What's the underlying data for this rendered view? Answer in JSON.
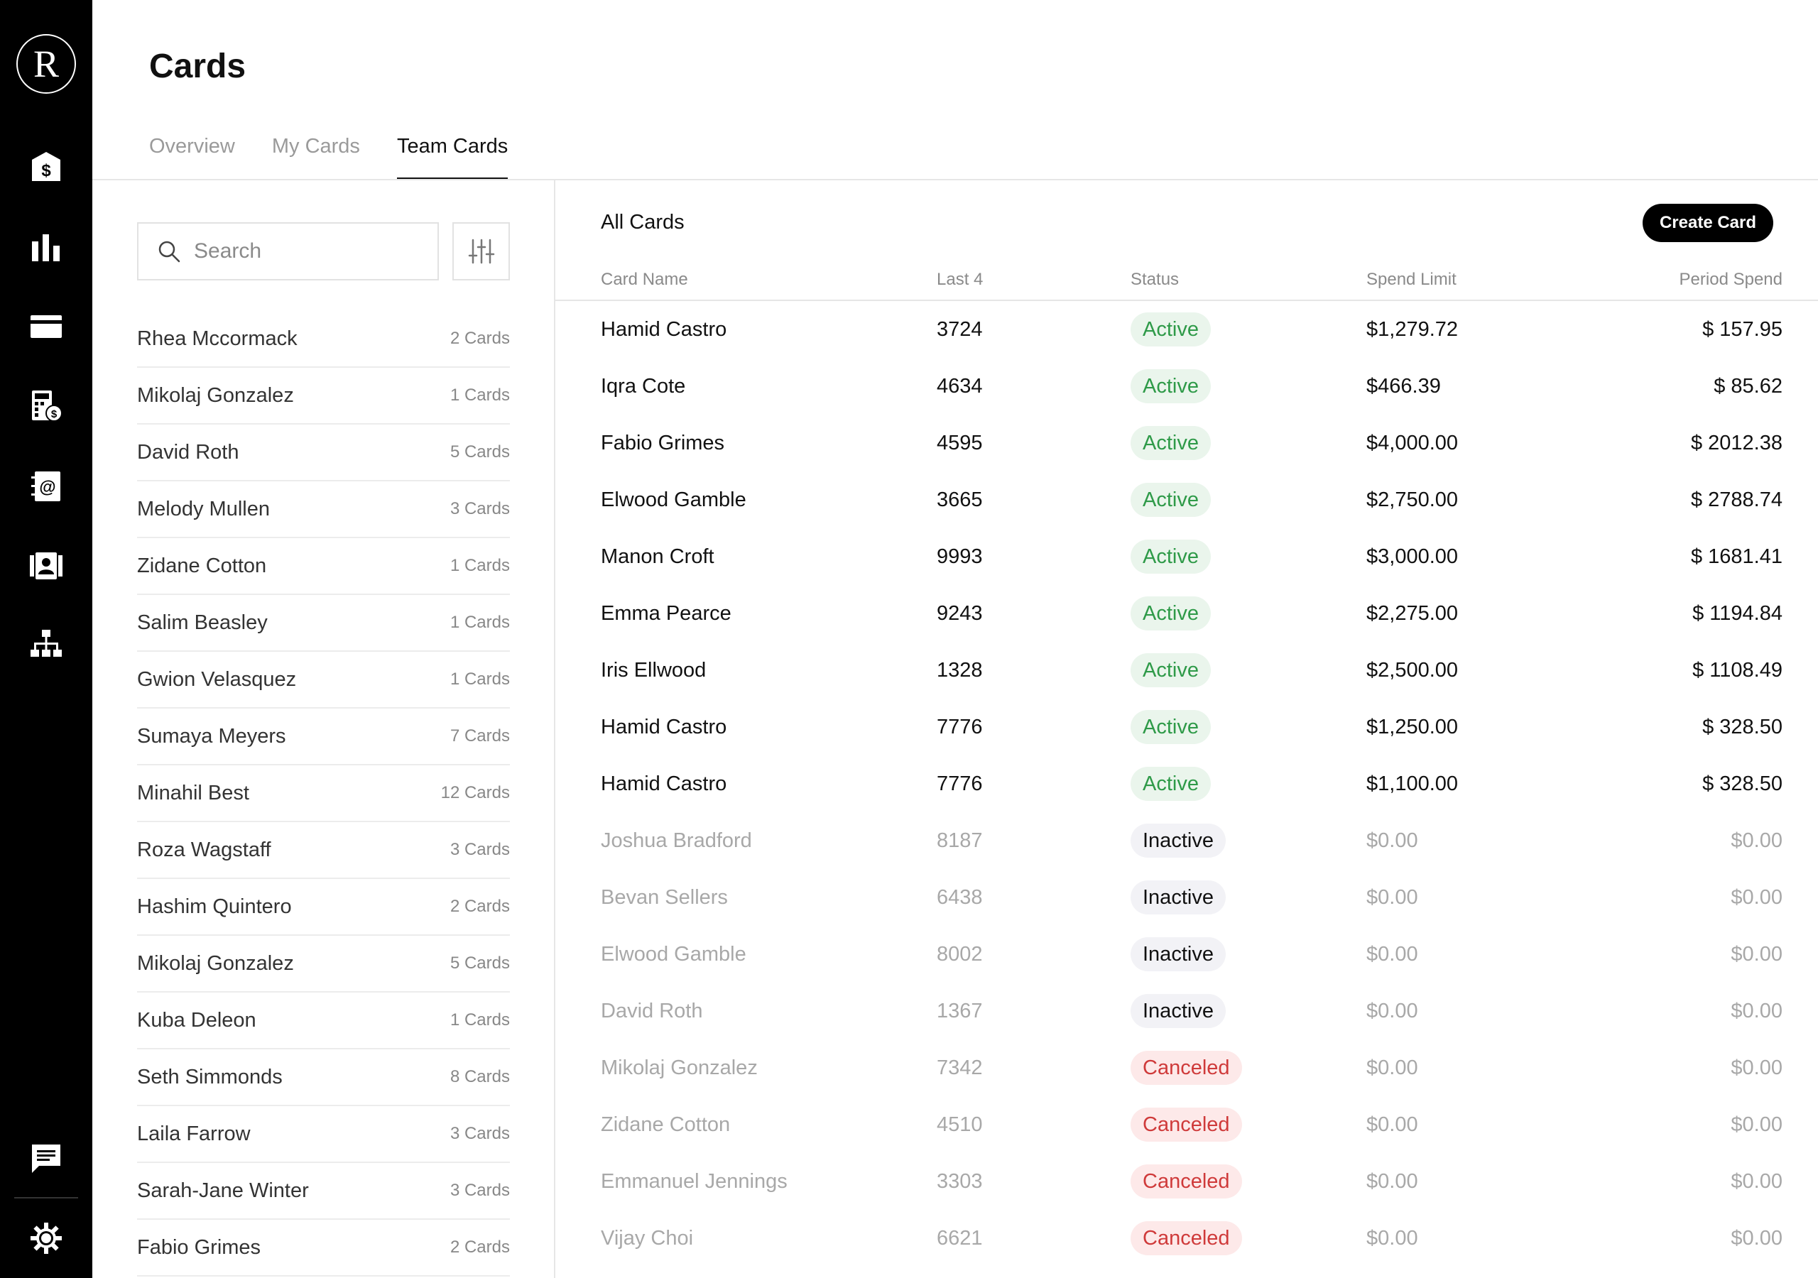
{
  "app": {
    "logo_letter": "R",
    "page_title": "Cards"
  },
  "sidebar": {
    "icons": [
      "bank-dollar-icon",
      "bar-chart-icon",
      "credit-card-icon",
      "calculator-dollar-icon",
      "email-book-icon",
      "contact-card-icon",
      "org-chart-icon",
      "chat-icon",
      "settings-gear-icon"
    ],
    "active": "credit-card-icon"
  },
  "tabs": [
    {
      "label": "Overview",
      "active": false
    },
    {
      "label": "My Cards",
      "active": false
    },
    {
      "label": "Team Cards",
      "active": true
    }
  ],
  "search": {
    "placeholder": "Search"
  },
  "people": [
    {
      "name": "Rhea Mccormack",
      "count": "2 Cards"
    },
    {
      "name": "Mikolaj Gonzalez",
      "count": "1 Cards"
    },
    {
      "name": "David Roth",
      "count": "5 Cards"
    },
    {
      "name": "Melody Mullen",
      "count": "3 Cards"
    },
    {
      "name": "Zidane Cotton",
      "count": "1 Cards"
    },
    {
      "name": "Salim Beasley",
      "count": "1 Cards"
    },
    {
      "name": "Gwion Velasquez",
      "count": "1 Cards"
    },
    {
      "name": "Sumaya Meyers",
      "count": "7 Cards"
    },
    {
      "name": "Minahil Best",
      "count": "12 Cards"
    },
    {
      "name": "Roza Wagstaff",
      "count": "3 Cards"
    },
    {
      "name": "Hashim Quintero",
      "count": "2 Cards"
    },
    {
      "name": "Mikolaj Gonzalez",
      "count": "5 Cards"
    },
    {
      "name": "Kuba Deleon",
      "count": "1 Cards"
    },
    {
      "name": "Seth Simmonds",
      "count": "8 Cards"
    },
    {
      "name": "Laila Farrow",
      "count": "3 Cards"
    },
    {
      "name": "Sarah-Jane Winter",
      "count": "3 Cards"
    },
    {
      "name": "Fabio Grimes",
      "count": "2 Cards"
    }
  ],
  "cards": {
    "section_title": "All Cards",
    "create_label": "Create Card",
    "columns": {
      "name": "Card Name",
      "last4": "Last 4",
      "status": "Status",
      "limit": "Spend Limit",
      "spend": "Period Spend"
    },
    "rows": [
      {
        "name": "Hamid Castro",
        "last4": "3724",
        "status": "Active",
        "limit": "$1,279.72",
        "spend": "$ 157.95"
      },
      {
        "name": "Iqra Cote",
        "last4": "4634",
        "status": "Active",
        "limit": "$466.39",
        "spend": "$ 85.62"
      },
      {
        "name": "Fabio Grimes",
        "last4": "4595",
        "status": "Active",
        "limit": "$4,000.00",
        "spend": "$ 2012.38"
      },
      {
        "name": "Elwood Gamble",
        "last4": "3665",
        "status": "Active",
        "limit": "$2,750.00",
        "spend": "$ 2788.74"
      },
      {
        "name": "Manon Croft",
        "last4": "9993",
        "status": "Active",
        "limit": "$3,000.00",
        "spend": "$ 1681.41"
      },
      {
        "name": "Emma Pearce",
        "last4": "9243",
        "status": "Active",
        "limit": "$2,275.00",
        "spend": "$ 1194.84"
      },
      {
        "name": "Iris Ellwood",
        "last4": "1328",
        "status": "Active",
        "limit": "$2,500.00",
        "spend": "$ 1108.49"
      },
      {
        "name": "Hamid Castro",
        "last4": "7776",
        "status": "Active",
        "limit": "$1,250.00",
        "spend": "$ 328.50"
      },
      {
        "name": "Hamid Castro",
        "last4": "7776",
        "status": "Active",
        "limit": "$1,100.00",
        "spend": "$ 328.50"
      },
      {
        "name": "Joshua Bradford",
        "last4": "8187",
        "status": "Inactive",
        "limit": "$0.00",
        "spend": "$0.00"
      },
      {
        "name": "Bevan Sellers",
        "last4": "6438",
        "status": "Inactive",
        "limit": "$0.00",
        "spend": "$0.00"
      },
      {
        "name": "Elwood Gamble",
        "last4": "8002",
        "status": "Inactive",
        "limit": "$0.00",
        "spend": "$0.00"
      },
      {
        "name": "David Roth",
        "last4": "1367",
        "status": "Inactive",
        "limit": "$0.00",
        "spend": "$0.00"
      },
      {
        "name": "Mikolaj Gonzalez",
        "last4": "7342",
        "status": "Canceled",
        "limit": "$0.00",
        "spend": "$0.00"
      },
      {
        "name": "Zidane Cotton",
        "last4": "4510",
        "status": "Canceled",
        "limit": "$0.00",
        "spend": "$0.00"
      },
      {
        "name": "Emmanuel Jennings",
        "last4": "3303",
        "status": "Canceled",
        "limit": "$0.00",
        "spend": "$0.00"
      },
      {
        "name": "Vijay Choi",
        "last4": "6621",
        "status": "Canceled",
        "limit": "$0.00",
        "spend": "$0.00"
      }
    ]
  },
  "colors": {
    "sidebar_bg": "#000000",
    "active_badge_bg": "#eaf5ec",
    "active_badge_text": "#2e9a48",
    "inactive_badge_bg": "#f2f2f6",
    "canceled_badge_bg": "#fde9e9",
    "canceled_badge_text": "#cf3a3a"
  }
}
